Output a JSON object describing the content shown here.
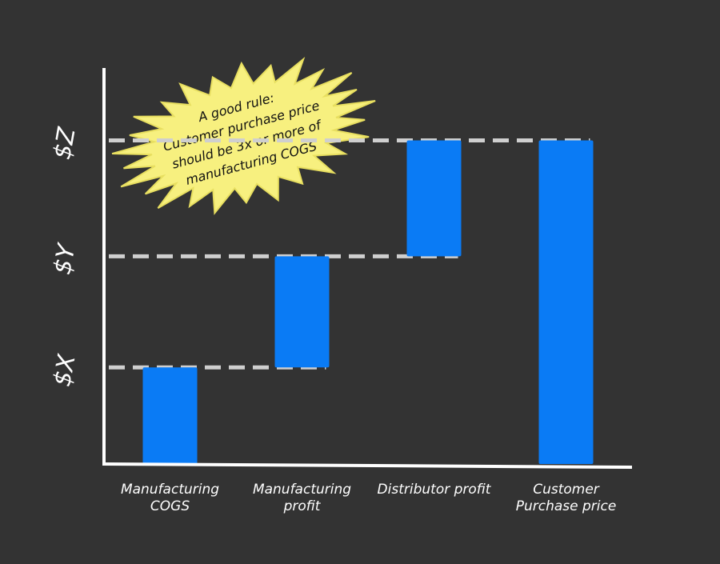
{
  "chart_data": {
    "type": "waterfall",
    "annotation": [
      "A good rule:",
      "Customer purchase price",
      "should be 3x or more of",
      "manufacturing COGS"
    ],
    "categories": [
      "Manufacturing COGS",
      "Manufacturing profit",
      "Distributor profit",
      "Customer Purchase price"
    ],
    "values": [
      1,
      1.15,
      1.2,
      3.35
    ],
    "is_total": [
      false,
      false,
      false,
      true
    ],
    "color": "#0a7bf5",
    "ylim": [
      0,
      4.1
    ],
    "yticks": [
      {
        "value": 1,
        "label": "$X"
      },
      {
        "value": 2.15,
        "label": "$Y"
      },
      {
        "value": 3.35,
        "label": "$Z"
      }
    ],
    "grid": true
  }
}
